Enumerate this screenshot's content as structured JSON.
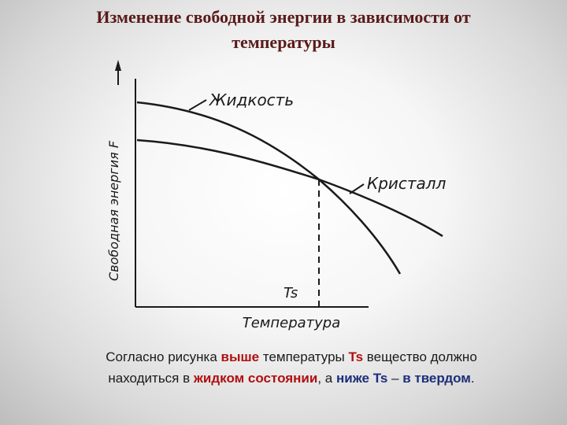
{
  "title": {
    "line1": "Изменение свободной энергии в зависимости от",
    "line2": "температуры"
  },
  "diagram": {
    "y_axis_label": "Свободная энергия F",
    "x_axis_label": "Температура",
    "curve_liquid_label": "Жидкость",
    "curve_crystal_label": "Кристалл",
    "transition_label": "Ts"
  },
  "caption": {
    "p1": "Согласно рисунка ",
    "p2": "выше",
    "p3": " температуры ",
    "p4": "Ts",
    "p5": " вещество должно",
    "p6": "находиться в ",
    "p7": "жидком состоянии",
    "p8": ", а ",
    "p9": "ниже",
    "p10": " ",
    "p11": "Ts",
    "p12": " – ",
    "p13": "в твердом",
    "p14": "."
  }
}
